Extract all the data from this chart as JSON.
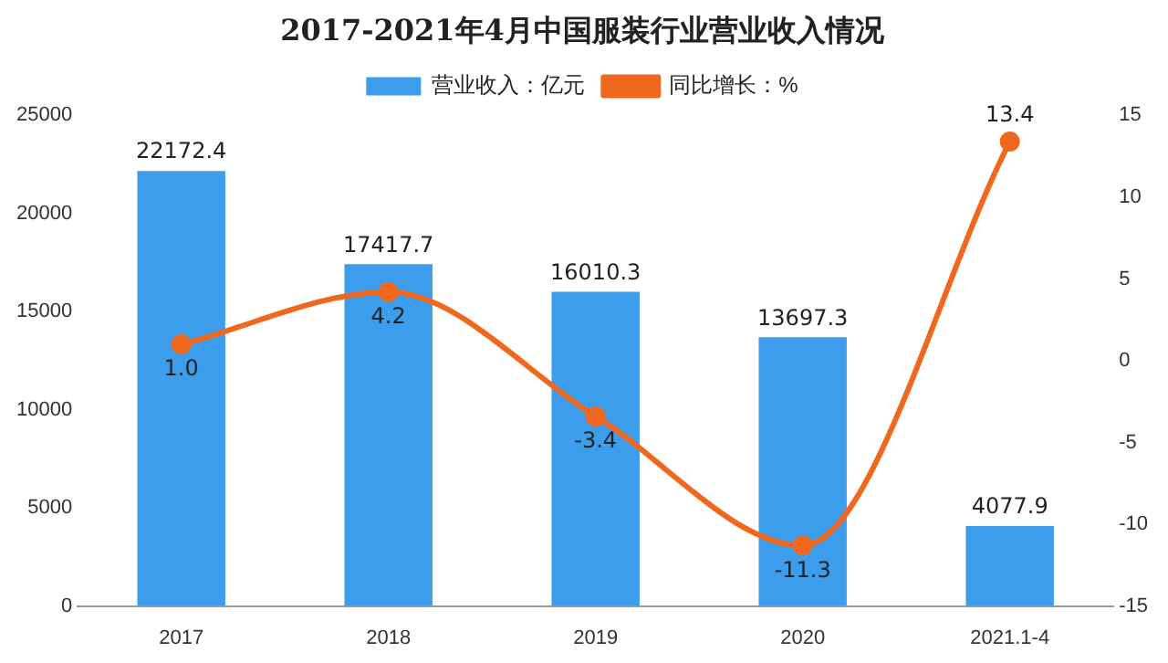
{
  "chart_data": {
    "type": "bar",
    "title": "2017-2021年4月中国服装行业营业收入情况",
    "categories": [
      "2017",
      "2018",
      "2019",
      "2020",
      "2021.1-4"
    ],
    "series": [
      {
        "name": "营业收入：亿元",
        "color": "#3d9ded",
        "values": [
          22172.4,
          17417.7,
          16010.3,
          13697.3,
          4077.9
        ],
        "value_labels": [
          "22172.4",
          "17417.7",
          "16010.3",
          "13697.3",
          "4077.9"
        ]
      },
      {
        "name": "同比增长：%",
        "type": "line",
        "axis": "y2",
        "color": "#f0671e",
        "values": [
          1.0,
          4.2,
          -3.4,
          -11.3,
          13.4
        ],
        "value_labels": [
          "1.0",
          "4.2",
          "-3.4",
          "-11.3",
          "13.4"
        ]
      }
    ],
    "ylim": [
      0,
      25000
    ],
    "yticks": [
      0,
      5000,
      10000,
      15000,
      20000,
      25000
    ],
    "y2lim": [
      -15,
      15
    ],
    "y2ticks": [
      -15,
      -10,
      -5,
      0,
      5,
      10,
      15
    ],
    "legend": "top",
    "grid": false,
    "marker": "circle",
    "line_style": "solid"
  }
}
